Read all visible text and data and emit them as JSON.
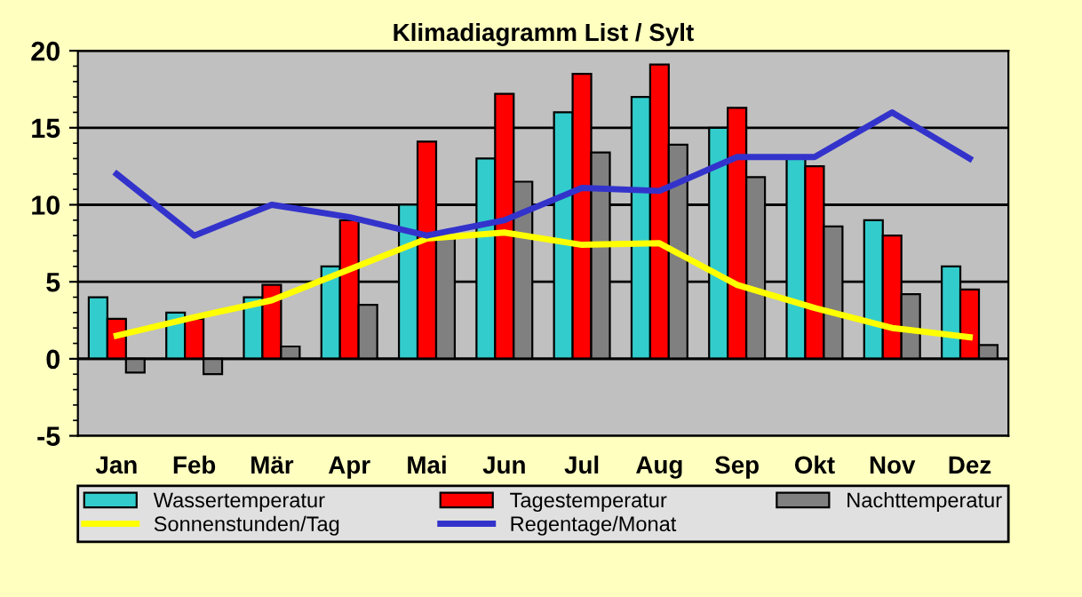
{
  "chart_data": {
    "type": "bar",
    "title": "Klimadiagramm List / Sylt",
    "categories": [
      "Jan",
      "Feb",
      "Mär",
      "Apr",
      "Mai",
      "Jun",
      "Jul",
      "Aug",
      "Sep",
      "Okt",
      "Nov",
      "Dez"
    ],
    "series": [
      {
        "name": "Wassertemperatur",
        "color": "#33cccc",
        "values": [
          4,
          3,
          4,
          6,
          10,
          13,
          16,
          17,
          15,
          13,
          9,
          6
        ]
      },
      {
        "name": "Tagestemperatur",
        "color": "#ff0000",
        "values": [
          2.6,
          2.6,
          4.8,
          9,
          14.1,
          17.2,
          18.5,
          19.1,
          16.3,
          12.5,
          8,
          4.5
        ]
      },
      {
        "name": "Nachttemperatur",
        "color": "#808080",
        "values": [
          -0.9,
          -1,
          0.8,
          3.5,
          8,
          11.5,
          13.4,
          13.9,
          11.8,
          8.6,
          4.2,
          0.9
        ]
      },
      {
        "name": "Sonnenstunden/Tag",
        "type": "line",
        "color": "#ffff00",
        "values": [
          1.5,
          2.7,
          3.8,
          5.8,
          7.8,
          8.2,
          7.4,
          7.5,
          4.8,
          3.3,
          2,
          1.4
        ]
      },
      {
        "name": "Regentage/Monat",
        "type": "line",
        "color": "#3333cc",
        "values": [
          12,
          8,
          10,
          9.2,
          8,
          9,
          11.1,
          10.9,
          13.1,
          13.1,
          16,
          13
        ]
      }
    ],
    "ylim": [
      -5,
      20
    ],
    "yticks": [
      -5,
      0,
      5,
      10,
      15,
      20
    ],
    "grid": "y",
    "legend": "bottom"
  }
}
